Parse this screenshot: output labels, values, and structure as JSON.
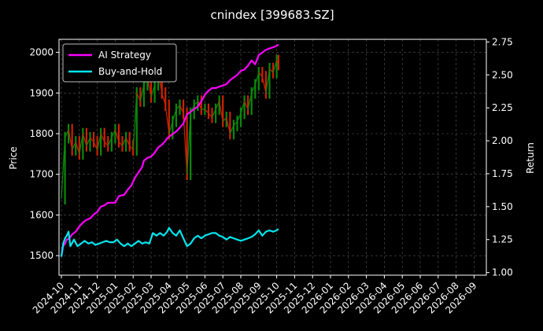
{
  "chart_data": {
    "type": "line",
    "title": "cnindex [399683.SZ]",
    "ylabel": "Price",
    "ylabel_right": "Return",
    "ylim": [
      1452,
      2032
    ],
    "ylim_right": [
      0.98,
      2.77
    ],
    "yticks": [
      1500,
      1600,
      1700,
      1800,
      1900,
      2000
    ],
    "yticks_right": [
      "1.00",
      "1.25",
      "1.50",
      "1.75",
      "2.00",
      "2.25",
      "2.50",
      "2.75"
    ],
    "x_categories": [
      "2024-10",
      "2024-11",
      "2024-12",
      "2025-01",
      "2025-02",
      "2025-03",
      "2025-04",
      "2025-05",
      "2025-06",
      "2025-07",
      "2025-08",
      "2025-09",
      "2025-10",
      "2025-11",
      "2025-12",
      "2026-01",
      "2026-02",
      "2026-03",
      "2026-04",
      "2026-05",
      "2026-06",
      "2026-07",
      "2026-08",
      "2026-09"
    ],
    "grid": true,
    "legend_position": "top-left",
    "colors": {
      "background": "#000000",
      "ai": "#ff00ff",
      "bh": "#00e5ee",
      "up": "#0a8a0a",
      "down": "#cc2200",
      "grid": "#555555"
    },
    "series": [
      {
        "name": "AI Strategy",
        "axis": "right",
        "x": [
          0.0,
          0.1,
          0.2,
          0.3,
          0.45,
          0.6,
          0.8,
          1.0,
          1.2,
          1.4,
          1.6,
          1.8,
          2.0,
          2.2,
          2.4,
          2.6,
          2.8,
          3.0,
          3.2,
          3.5,
          3.7,
          3.9,
          4.1,
          4.3,
          4.5,
          4.6,
          4.8,
          5.0,
          5.2,
          5.4,
          5.6,
          5.8,
          5.9,
          6.1,
          6.4,
          6.6,
          6.8,
          6.85,
          7.0,
          7.2,
          7.4,
          7.6,
          7.8,
          8.0,
          8.2,
          8.4,
          8.6,
          8.8,
          9.0,
          9.2,
          9.4,
          9.6,
          9.8,
          10.0,
          10.2,
          10.4,
          10.6,
          10.8,
          11.0,
          11.2,
          11.4,
          11.6,
          11.8,
          12.0,
          12.1
        ],
        "y": [
          1.12,
          1.2,
          1.22,
          1.25,
          1.26,
          1.29,
          1.31,
          1.35,
          1.38,
          1.4,
          1.41,
          1.44,
          1.46,
          1.5,
          1.51,
          1.53,
          1.53,
          1.53,
          1.58,
          1.59,
          1.63,
          1.66,
          1.72,
          1.76,
          1.8,
          1.85,
          1.87,
          1.88,
          1.91,
          1.95,
          1.97,
          2.0,
          2.02,
          2.04,
          2.07,
          2.1,
          2.13,
          2.15,
          2.2,
          2.22,
          2.24,
          2.26,
          2.3,
          2.35,
          2.38,
          2.4,
          2.4,
          2.41,
          2.42,
          2.43,
          2.46,
          2.48,
          2.5,
          2.53,
          2.54,
          2.57,
          2.61,
          2.58,
          2.65,
          2.67,
          2.69,
          2.7,
          2.71,
          2.72,
          2.73
        ]
      },
      {
        "name": "Buy-and-Hold",
        "axis": "right",
        "x": [
          0.0,
          0.1,
          0.2,
          0.3,
          0.4,
          0.5,
          0.7,
          0.9,
          1.1,
          1.3,
          1.5,
          1.7,
          1.9,
          2.1,
          2.3,
          2.5,
          2.7,
          2.9,
          3.1,
          3.3,
          3.5,
          3.7,
          3.9,
          4.1,
          4.3,
          4.5,
          4.7,
          4.9,
          5.1,
          5.3,
          5.5,
          5.7,
          5.9,
          6.0,
          6.2,
          6.4,
          6.6,
          6.8,
          7.0,
          7.2,
          7.4,
          7.6,
          7.8,
          8.0,
          8.2,
          8.4,
          8.6,
          8.8,
          9.0,
          9.2,
          9.4,
          9.6,
          9.8,
          10.0,
          10.2,
          10.4,
          10.6,
          10.8,
          11.0,
          11.2,
          11.4,
          11.6,
          11.8,
          12.0,
          12.1
        ],
        "y": [
          1.12,
          1.22,
          1.26,
          1.28,
          1.31,
          1.2,
          1.25,
          1.2,
          1.22,
          1.24,
          1.22,
          1.23,
          1.21,
          1.22,
          1.23,
          1.24,
          1.23,
          1.23,
          1.25,
          1.22,
          1.2,
          1.22,
          1.2,
          1.22,
          1.24,
          1.22,
          1.23,
          1.22,
          1.3,
          1.28,
          1.3,
          1.28,
          1.31,
          1.34,
          1.3,
          1.28,
          1.32,
          1.26,
          1.2,
          1.22,
          1.26,
          1.28,
          1.26,
          1.28,
          1.29,
          1.3,
          1.3,
          1.28,
          1.27,
          1.25,
          1.27,
          1.26,
          1.25,
          1.24,
          1.25,
          1.26,
          1.27,
          1.29,
          1.32,
          1.28,
          1.31,
          1.32,
          1.31,
          1.32,
          1.33
        ]
      }
    ],
    "price_series": {
      "name": "",
      "axis": "left",
      "x": [
        0.0,
        0.2,
        0.4,
        0.6,
        0.8,
        1.0,
        1.2,
        1.4,
        1.6,
        1.8,
        2.0,
        2.2,
        2.4,
        2.6,
        2.8,
        3.0,
        3.2,
        3.4,
        3.6,
        3.8,
        4.0,
        4.2,
        4.4,
        4.6,
        4.8,
        5.0,
        5.2,
        5.4,
        5.6,
        5.8,
        6.0,
        6.2,
        6.4,
        6.6,
        6.8,
        7.0,
        7.2,
        7.4,
        7.6,
        7.8,
        8.0,
        8.2,
        8.4,
        8.6,
        8.8,
        9.0,
        9.2,
        9.4,
        9.6,
        9.8,
        10.0,
        10.2,
        10.4,
        10.6,
        10.8,
        11.0,
        11.2,
        11.4,
        11.6,
        11.8,
        12.0,
        12.1
      ],
      "y": [
        1640,
        1790,
        1810,
        1760,
        1780,
        1750,
        1800,
        1770,
        1790,
        1780,
        1760,
        1800,
        1780,
        1770,
        1790,
        1810,
        1780,
        1770,
        1790,
        1770,
        1760,
        1900,
        1880,
        1920,
        1940,
        1890,
        1920,
        1950,
        1900,
        1870,
        1800,
        1830,
        1860,
        1870,
        1850,
        1700,
        1850,
        1870,
        1880,
        1860,
        1860,
        1850,
        1840,
        1860,
        1880,
        1830,
        1840,
        1800,
        1820,
        1830,
        1850,
        1880,
        1860,
        1900,
        1920,
        1950,
        1940,
        1900,
        1960,
        1950,
        1980,
        1970
      ]
    }
  }
}
